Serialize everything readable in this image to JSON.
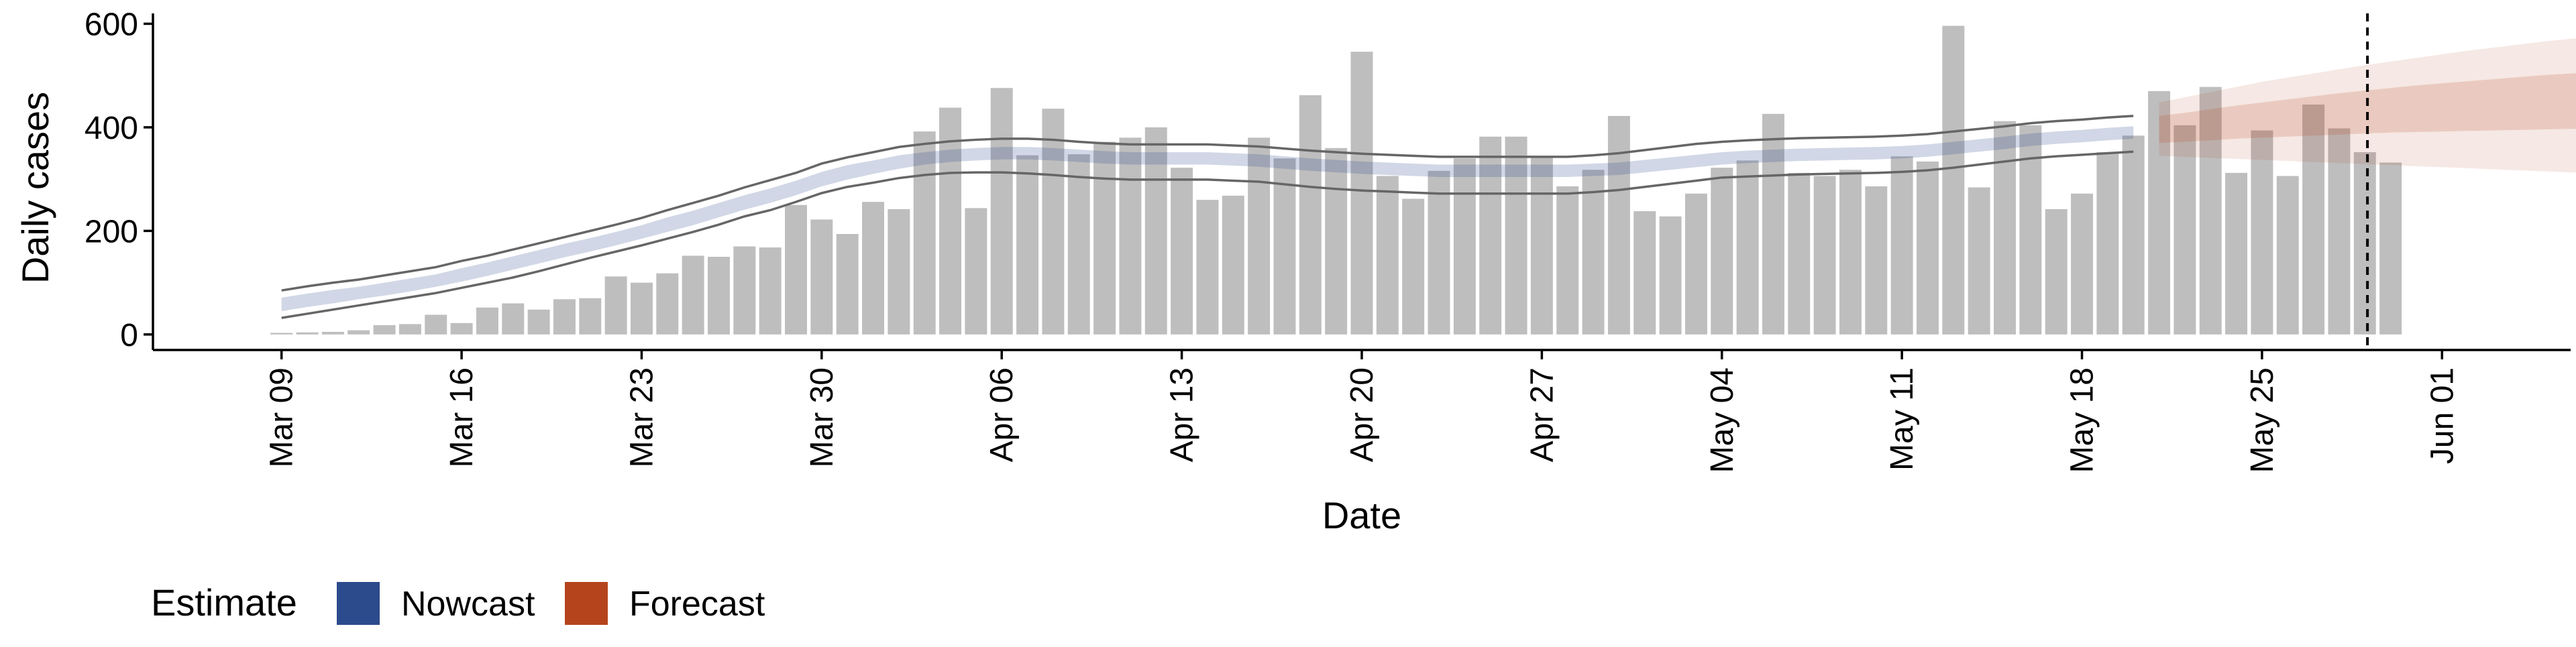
{
  "chart_data": {
    "type": "bar",
    "title": "",
    "xlabel": "Date",
    "ylabel": "Daily cases",
    "x_start": "2020-03-09",
    "x_end": "2020-06-01",
    "xlim": [
      "2020-03-04",
      "2020-06-06"
    ],
    "ylim": [
      -30,
      620
    ],
    "grid": false,
    "x_ticks": [
      "Mar 09",
      "Mar 16",
      "Mar 23",
      "Mar 30",
      "Apr 06",
      "Apr 13",
      "Apr 20",
      "Apr 27",
      "May 04",
      "May 11",
      "May 18",
      "May 25",
      "Jun 01"
    ],
    "x_tick_dates": [
      "2020-03-09",
      "2020-03-16",
      "2020-03-23",
      "2020-03-30",
      "2020-04-06",
      "2020-04-13",
      "2020-04-20",
      "2020-04-27",
      "2020-05-04",
      "2020-05-11",
      "2020-05-18",
      "2020-05-25",
      "2020-06-01"
    ],
    "y_ticks": [
      0,
      200,
      400,
      600
    ],
    "bars": {
      "name": "Daily cases",
      "color": "#bebebe",
      "start_date": "2020-03-09",
      "values": [
        3,
        4,
        5,
        8,
        18,
        20,
        38,
        22,
        52,
        60,
        48,
        68,
        70,
        112,
        100,
        118,
        152,
        150,
        170,
        168,
        250,
        222,
        194,
        256,
        242,
        392,
        438,
        244,
        476,
        346,
        436,
        348,
        372,
        380,
        400,
        322,
        260,
        268,
        380,
        340,
        462,
        360,
        546,
        306,
        262,
        316,
        340,
        382,
        382,
        342,
        286,
        318,
        422,
        238,
        228,
        272,
        322,
        336,
        426,
        312,
        306,
        318,
        286,
        344,
        334,
        596,
        284,
        412,
        404,
        242,
        272,
        352,
        384,
        470,
        404,
        478,
        312,
        394,
        306,
        444,
        398,
        352,
        332
      ]
    },
    "nowcast": {
      "name": "Nowcast",
      "color": "#2c4b8c",
      "start_date": "2020-03-09",
      "median": [
        58,
        66,
        73,
        80,
        87,
        95,
        104,
        115,
        126,
        138,
        150,
        162,
        173,
        185,
        198,
        212,
        225,
        240,
        255,
        268,
        283,
        300,
        313,
        323,
        333,
        340,
        345,
        348,
        350,
        350,
        348,
        345,
        342,
        340,
        340,
        340,
        340,
        338,
        336,
        332,
        328,
        325,
        322,
        320,
        318,
        316,
        316,
        316,
        316,
        316,
        316,
        318,
        320,
        325,
        330,
        335,
        340,
        343,
        345,
        347,
        348,
        349,
        350,
        352,
        355,
        360,
        365,
        370,
        376,
        380,
        383,
        387,
        390
      ],
      "inner_low": [
        45,
        53,
        60,
        68,
        75,
        83,
        92,
        102,
        113,
        125,
        137,
        149,
        160,
        172,
        185,
        198,
        211,
        226,
        241,
        254,
        269,
        286,
        299,
        310,
        320,
        328,
        333,
        336,
        338,
        338,
        336,
        333,
        330,
        328,
        328,
        328,
        328,
        326,
        324,
        320,
        316,
        313,
        310,
        308,
        306,
        304,
        304,
        304,
        304,
        304,
        304,
        306,
        308,
        313,
        318,
        323,
        328,
        331,
        333,
        335,
        336,
        337,
        338,
        340,
        343,
        348,
        353,
        358,
        364,
        368,
        371,
        375,
        378
      ],
      "inner_high": [
        71,
        79,
        86,
        92,
        100,
        108,
        116,
        128,
        139,
        151,
        163,
        175,
        186,
        198,
        211,
        226,
        239,
        254,
        269,
        282,
        297,
        314,
        327,
        336,
        346,
        352,
        357,
        360,
        362,
        362,
        360,
        357,
        354,
        352,
        352,
        352,
        352,
        350,
        348,
        344,
        340,
        337,
        334,
        332,
        330,
        328,
        328,
        328,
        328,
        328,
        328,
        330,
        332,
        337,
        342,
        347,
        352,
        355,
        357,
        359,
        360,
        361,
        362,
        364,
        367,
        372,
        377,
        382,
        388,
        392,
        395,
        399,
        402
      ],
      "outer_low": [
        32,
        40,
        48,
        56,
        64,
        72,
        80,
        90,
        100,
        110,
        122,
        135,
        148,
        160,
        172,
        185,
        198,
        212,
        228,
        240,
        256,
        273,
        285,
        293,
        302,
        308,
        312,
        313,
        313,
        311,
        308,
        304,
        301,
        299,
        299,
        299,
        299,
        297,
        295,
        290,
        285,
        281,
        278,
        276,
        274,
        272,
        272,
        272,
        272,
        272,
        272,
        275,
        279,
        285,
        291,
        297,
        303,
        305,
        307,
        309,
        310,
        311,
        312,
        314,
        317,
        322,
        328,
        334,
        340,
        344,
        347,
        350,
        353
      ],
      "outer_high": [
        85,
        93,
        100,
        106,
        114,
        122,
        130,
        142,
        152,
        164,
        176,
        188,
        200,
        212,
        225,
        240,
        254,
        268,
        284,
        298,
        312,
        330,
        342,
        352,
        362,
        368,
        373,
        376,
        378,
        378,
        376,
        372,
        369,
        367,
        367,
        367,
        367,
        365,
        363,
        359,
        355,
        352,
        349,
        347,
        345,
        343,
        343,
        343,
        343,
        343,
        343,
        346,
        350,
        356,
        362,
        368,
        372,
        375,
        377,
        379,
        380,
        381,
        382,
        384,
        387,
        392,
        397,
        402,
        408,
        412,
        415,
        419,
        422
      ]
    },
    "forecast": {
      "name": "Forecast",
      "color": "#b5441d",
      "start_date": "2020-05-21",
      "median": [
        396,
        400,
        405,
        410,
        414,
        418,
        422,
        426,
        430,
        433,
        436,
        439,
        442,
        446,
        450,
        454,
        458,
        460
      ],
      "inner_low": [
        370,
        372,
        375,
        378,
        380,
        382,
        384,
        386,
        388,
        390,
        391,
        392,
        393,
        394,
        395,
        396,
        397,
        398
      ],
      "inner_high": [
        422,
        428,
        435,
        442,
        448,
        454,
        460,
        466,
        471,
        476,
        481,
        485,
        489,
        493,
        497,
        501,
        504,
        506
      ],
      "outer_low": [
        345,
        343,
        341,
        339,
        337,
        335,
        333,
        331,
        329,
        327,
        325,
        323,
        321,
        319,
        317,
        315,
        313,
        312
      ],
      "outer_high": [
        448,
        458,
        468,
        478,
        488,
        496,
        504,
        512,
        520,
        527,
        534,
        541,
        548,
        554,
        560,
        566,
        571,
        575
      ]
    },
    "estimate_date": "2020-05-29",
    "legend": {
      "title": "Estimate",
      "placement": "bottom-left",
      "entries": [
        {
          "label": "Nowcast",
          "color": "#2c4b8c"
        },
        {
          "label": "Forecast",
          "color": "#b5441d"
        }
      ]
    }
  }
}
